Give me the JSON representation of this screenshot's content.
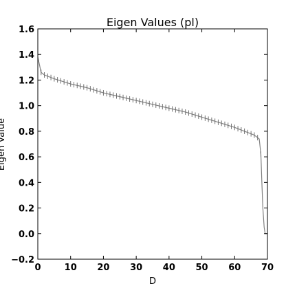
{
  "chart_data": {
    "type": "line",
    "title": "Eigen Values (pl)",
    "xlabel": "D",
    "ylabel": "Eigen Value",
    "xlim": [
      0,
      70
    ],
    "ylim": [
      -0.2,
      1.6
    ],
    "xticks": [
      "0",
      "10",
      "20",
      "30",
      "40",
      "50",
      "60",
      "70"
    ],
    "yticks": [
      "−0.2",
      "0.0",
      "0.2",
      "0.4",
      "0.6",
      "0.8",
      "1.0",
      "1.2",
      "1.4",
      "1.6"
    ],
    "grid": false,
    "series": [
      {
        "color": "#808080",
        "error_bars": true,
        "x": [
          0,
          0.5,
          1,
          2,
          5,
          10,
          15,
          20,
          25,
          30,
          35,
          40,
          45,
          50,
          55,
          60,
          63,
          65,
          66,
          67,
          67.5,
          68,
          68.3,
          68.6,
          69,
          69.3,
          70
        ],
        "y": [
          1.38,
          1.32,
          1.26,
          1.24,
          1.21,
          1.17,
          1.14,
          1.1,
          1.07,
          1.04,
          1.01,
          0.98,
          0.95,
          0.91,
          0.87,
          0.83,
          0.8,
          0.78,
          0.77,
          0.75,
          0.74,
          0.62,
          0.4,
          0.2,
          0.05,
          0.0,
          0.0
        ]
      }
    ]
  }
}
